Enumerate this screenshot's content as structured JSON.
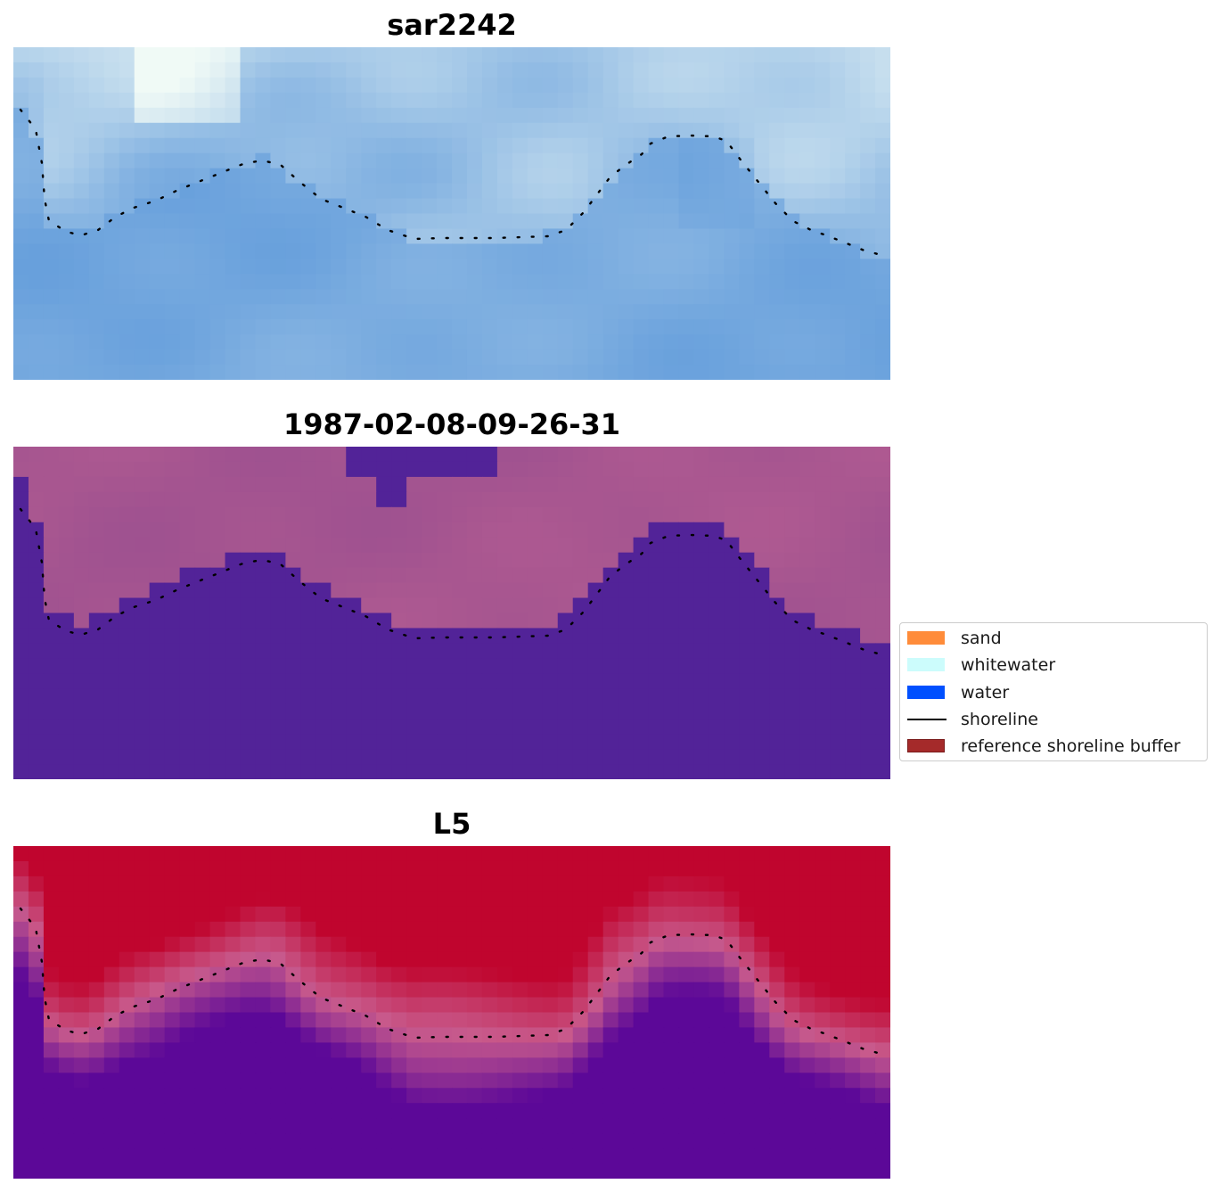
{
  "panels": [
    {
      "title": "sar2242",
      "style": "sar"
    },
    {
      "title": "1987-02-08-09-26-31",
      "style": "classified"
    },
    {
      "title": "L5",
      "style": "index"
    }
  ],
  "legend": {
    "items": [
      {
        "label": "sand",
        "color": "#ff8c3a",
        "kind": "patch"
      },
      {
        "label": "whitewater",
        "color": "#ccfcfc",
        "kind": "patch"
      },
      {
        "label": "water",
        "color": "#0050ff",
        "kind": "patch"
      },
      {
        "label": "shoreline",
        "color": "#000000",
        "kind": "line"
      },
      {
        "label": "reference shoreline buffer",
        "color": "#a52a2a",
        "kind": "patch"
      }
    ]
  },
  "colors": {
    "classified_water": "#522398",
    "classified_land": "#9c5090",
    "index_high": "#c0052e",
    "index_low": "#5c0898"
  }
}
